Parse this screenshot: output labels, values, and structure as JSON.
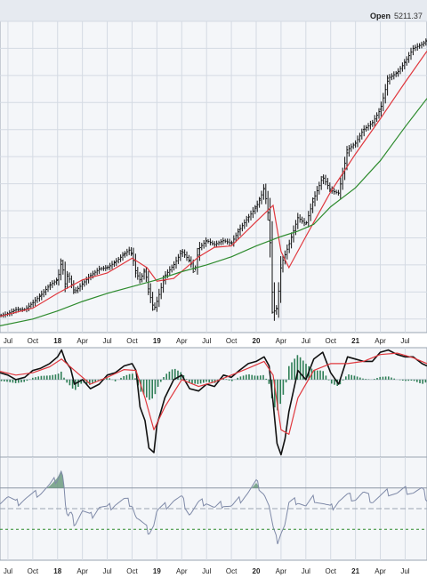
{
  "header": {
    "open_label": "Open",
    "open_value": "5211.37"
  },
  "colors": {
    "panel_bg": "#f4f6f9",
    "grid": "#d4dae3",
    "border": "#9aa4b1",
    "price": "#111111",
    "ma50": "#e0383e",
    "ma200": "#2e8b2e",
    "macd": "#111111",
    "macd_signal": "#e0383e",
    "macd_hist": "#2f7f57",
    "rsi": "#7f8aa8",
    "rsi_fill": "#5b8f6f",
    "rsi_oversold": "#2e8b2e"
  },
  "chart_data": {
    "type": "line",
    "x_ticks": [
      "Jul",
      "Oct",
      "18",
      "Apr",
      "Jul",
      "Oct",
      "19",
      "Apr",
      "Jul",
      "Oct",
      "20",
      "Apr",
      "Jul",
      "Oct",
      "21",
      "Apr",
      "Jul"
    ],
    "x_ticks_bold": [
      "18",
      "19",
      "20",
      "21"
    ],
    "x_range": [
      2017.42,
      2021.72
    ],
    "price_panel": {
      "ylim": [
        2300,
        4600
      ],
      "series": [
        {
          "key": "price",
          "style": "ohlc",
          "x": [
            2017.42,
            2017.5,
            2017.58,
            2017.67,
            2017.75,
            2017.83,
            2017.92,
            2018.0,
            2018.04,
            2018.08,
            2018.1,
            2018.17,
            2018.25,
            2018.33,
            2018.42,
            2018.5,
            2018.58,
            2018.67,
            2018.72,
            2018.75,
            2018.79,
            2018.83,
            2018.88,
            2018.92,
            2018.97,
            2019.0,
            2019.08,
            2019.17,
            2019.25,
            2019.33,
            2019.38,
            2019.42,
            2019.5,
            2019.58,
            2019.67,
            2019.75,
            2019.83,
            2019.92,
            2020.0,
            2020.04,
            2020.08,
            2020.13,
            2020.17,
            2020.21,
            2020.25,
            2020.33,
            2020.42,
            2020.5,
            2020.58,
            2020.67,
            2020.75,
            2020.83,
            2020.92,
            2021.0,
            2021.08,
            2021.17,
            2021.25,
            2021.33,
            2021.42,
            2021.5,
            2021.58,
            2021.67,
            2021.72
          ],
          "y": [
            2425,
            2440,
            2470,
            2470,
            2520,
            2575,
            2650,
            2690,
            2830,
            2640,
            2730,
            2600,
            2660,
            2720,
            2770,
            2780,
            2820,
            2880,
            2910,
            2880,
            2740,
            2690,
            2760,
            2600,
            2470,
            2530,
            2720,
            2800,
            2900,
            2830,
            2750,
            2920,
            2980,
            2950,
            2980,
            2960,
            3060,
            3150,
            3230,
            3290,
            3370,
            3130,
            2450,
            2480,
            2800,
            2950,
            3150,
            3100,
            3290,
            3450,
            3350,
            3330,
            3650,
            3700,
            3800,
            3850,
            3950,
            4180,
            4220,
            4300,
            4400,
            4430,
            4460
          ]
        },
        {
          "key": "ma50",
          "name": "",
          "x": [
            2017.42,
            2017.75,
            2018.0,
            2018.25,
            2018.5,
            2018.75,
            2018.9,
            2019.0,
            2019.17,
            2019.42,
            2019.58,
            2019.75,
            2020.0,
            2020.17,
            2020.25,
            2020.33,
            2020.5,
            2020.75,
            2021.0,
            2021.25,
            2021.5,
            2021.72
          ],
          "y": [
            2420,
            2480,
            2590,
            2690,
            2740,
            2850,
            2780,
            2680,
            2700,
            2860,
            2930,
            2940,
            3120,
            3240,
            2900,
            2780,
            3010,
            3340,
            3620,
            3880,
            4150,
            4380
          ]
        },
        {
          "key": "ma200",
          "name": "",
          "x": [
            2017.42,
            2017.75,
            2018.0,
            2018.25,
            2018.5,
            2018.75,
            2019.0,
            2019.25,
            2019.5,
            2019.75,
            2020.0,
            2020.25,
            2020.42,
            2020.58,
            2020.75,
            2021.0,
            2021.25,
            2021.5,
            2021.72
          ],
          "y": [
            2350,
            2400,
            2460,
            2530,
            2590,
            2640,
            2690,
            2750,
            2800,
            2860,
            2940,
            3010,
            3050,
            3100,
            3230,
            3370,
            3570,
            3820,
            4030
          ]
        }
      ]
    },
    "macd_panel": {
      "ylim": [
        -170,
        70
      ],
      "zero": 0,
      "series": [
        {
          "key": "macd",
          "name": "",
          "x": [
            2017.42,
            2017.5,
            2017.58,
            2017.67,
            2017.75,
            2017.83,
            2017.92,
            2018.0,
            2018.04,
            2018.08,
            2018.13,
            2018.17,
            2018.25,
            2018.33,
            2018.42,
            2018.5,
            2018.58,
            2018.67,
            2018.75,
            2018.79,
            2018.83,
            2018.88,
            2018.92,
            2018.97,
            2019.0,
            2019.08,
            2019.17,
            2019.25,
            2019.33,
            2019.42,
            2019.5,
            2019.58,
            2019.67,
            2019.75,
            2019.83,
            2019.92,
            2020.0,
            2020.08,
            2020.13,
            2020.17,
            2020.21,
            2020.25,
            2020.29,
            2020.33,
            2020.42,
            2020.5,
            2020.58,
            2020.67,
            2020.75,
            2020.83,
            2020.92,
            2021.0,
            2021.08,
            2021.17,
            2021.25,
            2021.33,
            2021.42,
            2021.5,
            2021.58,
            2021.67,
            2021.72
          ],
          "y": [
            15,
            10,
            0,
            5,
            20,
            25,
            35,
            50,
            65,
            40,
            25,
            -10,
            0,
            -20,
            -10,
            10,
            15,
            30,
            35,
            20,
            -60,
            -90,
            -150,
            -160,
            -100,
            -40,
            0,
            10,
            -20,
            -25,
            -10,
            -15,
            10,
            5,
            20,
            35,
            40,
            50,
            30,
            -50,
            -140,
            -165,
            -130,
            -70,
            20,
            0,
            45,
            60,
            15,
            -10,
            50,
            45,
            40,
            40,
            60,
            65,
            55,
            50,
            50,
            35,
            30
          ]
        },
        {
          "key": "macd_signal",
          "name": "",
          "x": [
            2017.42,
            2017.58,
            2017.75,
            2017.92,
            2018.04,
            2018.17,
            2018.33,
            2018.5,
            2018.67,
            2018.79,
            2018.88,
            2018.97,
            2019.08,
            2019.25,
            2019.42,
            2019.58,
            2019.75,
            2019.92,
            2020.08,
            2020.17,
            2020.25,
            2020.33,
            2020.42,
            2020.58,
            2020.75,
            2020.92,
            2021.08,
            2021.25,
            2021.42,
            2021.58,
            2021.72
          ],
          "y": [
            18,
            10,
            15,
            28,
            45,
            20,
            -10,
            5,
            22,
            20,
            -40,
            -110,
            -60,
            0,
            -15,
            -5,
            10,
            25,
            40,
            10,
            -110,
            -120,
            -40,
            20,
            35,
            35,
            40,
            55,
            58,
            48,
            35
          ]
        }
      ],
      "histogram": {
        "x": [
          2017.42,
          2017.5,
          2017.58,
          2017.67,
          2017.75,
          2017.83,
          2017.92,
          2018.0,
          2018.04,
          2018.08,
          2018.13,
          2018.17,
          2018.25,
          2018.33,
          2018.42,
          2018.5,
          2018.58,
          2018.67,
          2018.75,
          2018.79,
          2018.83,
          2018.88,
          2018.92,
          2018.97,
          2019.0,
          2019.08,
          2019.17,
          2019.25,
          2019.33,
          2019.42,
          2019.5,
          2019.58,
          2019.67,
          2019.75,
          2019.83,
          2019.92,
          2020.0,
          2020.08,
          2020.13,
          2020.17,
          2020.21,
          2020.25,
          2020.29,
          2020.33,
          2020.42,
          2020.5,
          2020.58,
          2020.67,
          2020.75,
          2020.83,
          2020.92,
          2021.0,
          2021.08,
          2021.17,
          2021.25,
          2021.33,
          2021.42,
          2021.5,
          2021.58,
          2021.67,
          2021.72
        ],
        "y": [
          -3,
          -5,
          -8,
          -5,
          4,
          8,
          9,
          12,
          18,
          -4,
          -14,
          -25,
          -6,
          -12,
          0,
          6,
          -4,
          8,
          14,
          0,
          -25,
          -35,
          -45,
          -40,
          -20,
          10,
          25,
          15,
          -8,
          -10,
          -5,
          -8,
          4,
          -4,
          6,
          12,
          8,
          10,
          -10,
          -55,
          -70,
          -50,
          -20,
          30,
          55,
          35,
          20,
          20,
          -8,
          -15,
          12,
          8,
          2,
          0,
          6,
          7,
          0,
          -3,
          -2,
          -10,
          -5
        ]
      }
    },
    "rsi_panel": {
      "ylim": [
        0,
        100
      ],
      "levels": [
        70,
        50,
        30
      ],
      "series": [
        {
          "key": "rsi",
          "name": "",
          "x": [
            2017.42,
            2017.5,
            2017.58,
            2017.67,
            2017.75,
            2017.83,
            2017.92,
            2018.0,
            2018.04,
            2018.06,
            2018.08,
            2018.1,
            2018.13,
            2018.17,
            2018.25,
            2018.33,
            2018.42,
            2018.5,
            2018.58,
            2018.67,
            2018.75,
            2018.79,
            2018.83,
            2018.88,
            2018.92,
            2018.97,
            2019.0,
            2019.08,
            2019.17,
            2019.25,
            2019.33,
            2019.42,
            2019.5,
            2019.58,
            2019.67,
            2019.75,
            2019.83,
            2019.92,
            2020.0,
            2020.04,
            2020.08,
            2020.13,
            2020.17,
            2020.21,
            2020.25,
            2020.29,
            2020.33,
            2020.42,
            2020.5,
            2020.58,
            2020.67,
            2020.75,
            2020.83,
            2020.92,
            2021.0,
            2021.08,
            2021.17,
            2021.25,
            2021.33,
            2021.42,
            2021.5,
            2021.58,
            2021.67,
            2021.72
          ],
          "y": [
            58,
            62,
            55,
            60,
            63,
            66,
            72,
            80,
            88,
            78,
            52,
            40,
            45,
            36,
            48,
            42,
            52,
            50,
            55,
            58,
            55,
            42,
            38,
            32,
            28,
            35,
            48,
            52,
            58,
            60,
            45,
            55,
            57,
            50,
            55,
            52,
            58,
            66,
            75,
            70,
            65,
            52,
            30,
            18,
            28,
            35,
            55,
            58,
            52,
            60,
            55,
            50,
            58,
            62,
            60,
            65,
            58,
            62,
            66,
            65,
            68,
            66,
            68,
            60
          ]
        }
      ]
    }
  }
}
